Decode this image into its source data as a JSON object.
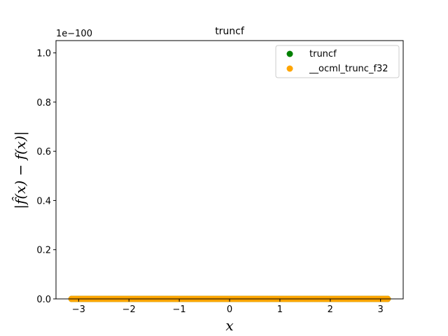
{
  "chart_data": {
    "type": "scatter",
    "title": "truncf",
    "xlabel": "x",
    "ylabel": "|f̂(x) − f(x)|",
    "y_offset_label": "1e−100",
    "xlim": [
      -3.45,
      3.45
    ],
    "ylim": [
      0,
      1.05
    ],
    "x_ticks": [
      -3,
      -2,
      -1,
      0,
      1,
      2,
      3
    ],
    "x_tick_labels": [
      "−3",
      "−2",
      "−1",
      "0",
      "1",
      "2",
      "3"
    ],
    "y_ticks": [
      0.0,
      0.2,
      0.4,
      0.6,
      0.8,
      1.0
    ],
    "y_tick_labels": [
      "0.0",
      "0.2",
      "0.4",
      "0.6",
      "0.8",
      "1.0"
    ],
    "x_range": [
      -3.14159,
      3.14159
    ],
    "grid": false,
    "legend_position": "top-right",
    "series": [
      {
        "name": "truncf",
        "color": "#008000",
        "y_value": 0
      },
      {
        "name": "__ocml_trunc_f32",
        "color": "#ffa500",
        "y_value": 0
      }
    ]
  }
}
